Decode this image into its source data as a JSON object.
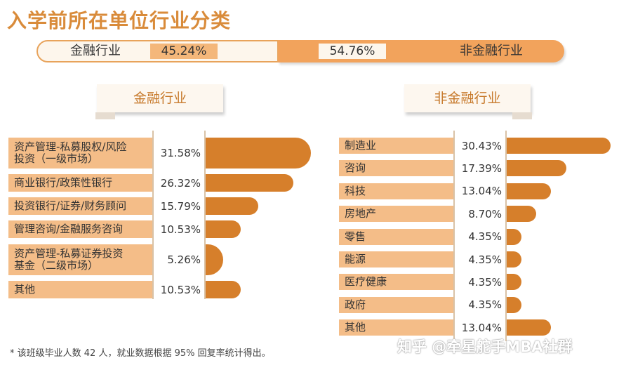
{
  "title": "入学前所在单位行业分类",
  "split": {
    "left_label": "金融行业",
    "left_pct": "45.24%",
    "right_pct": "54.76%",
    "right_label": "非金融行业",
    "left_value": 45.24,
    "right_value": 54.76
  },
  "footnote": "* 该班级毕业人数 42 人，就业数据根据 95% 回复率统计得出。",
  "watermark": "知乎 @牵星舵手MBA社群",
  "colors": {
    "accent": "#d98b3a",
    "bar": "#d67f2b",
    "label_bg": "#f4bd88"
  },
  "chart_data": [
    {
      "type": "bar",
      "title": "金融行业",
      "categories": [
        "资产管理-私募股权/风险投资（一级市场）",
        "商业银行/政策性银行",
        "投资银行/证券/财务顾问",
        "管理咨询/金融服务咨询",
        "资产管理-私募证券投资基金（二级市场）",
        "其他"
      ],
      "category_lines": [
        [
          "资产管理-私募股权/风险",
          "投资（一级市场）"
        ],
        [
          "商业银行/政策性银行"
        ],
        [
          "投资银行/证券/财务顾问"
        ],
        [
          "管理咨询/金融服务咨询"
        ],
        [
          "资产管理-私募证券投资",
          "基金（二级市场）"
        ],
        [
          "其他"
        ]
      ],
      "values": [
        31.58,
        26.32,
        15.79,
        10.53,
        5.26,
        10.53
      ],
      "value_labels": [
        "31.58%",
        "26.32%",
        "15.79%",
        "10.53%",
        "5.26%",
        "10.53%"
      ]
    },
    {
      "type": "bar",
      "title": "非金融行业",
      "categories": [
        "制造业",
        "咨询",
        "科技",
        "房地产",
        "零售",
        "能源",
        "医疗健康",
        "政府",
        "其他"
      ],
      "values": [
        30.43,
        17.39,
        13.04,
        8.7,
        4.35,
        4.35,
        4.35,
        4.35,
        13.04
      ],
      "value_labels": [
        "30.43%",
        "17.39%",
        "13.04%",
        "8.70%",
        "4.35%",
        "4.35%",
        "4.35%",
        "4.35%",
        "13.04%"
      ]
    }
  ]
}
